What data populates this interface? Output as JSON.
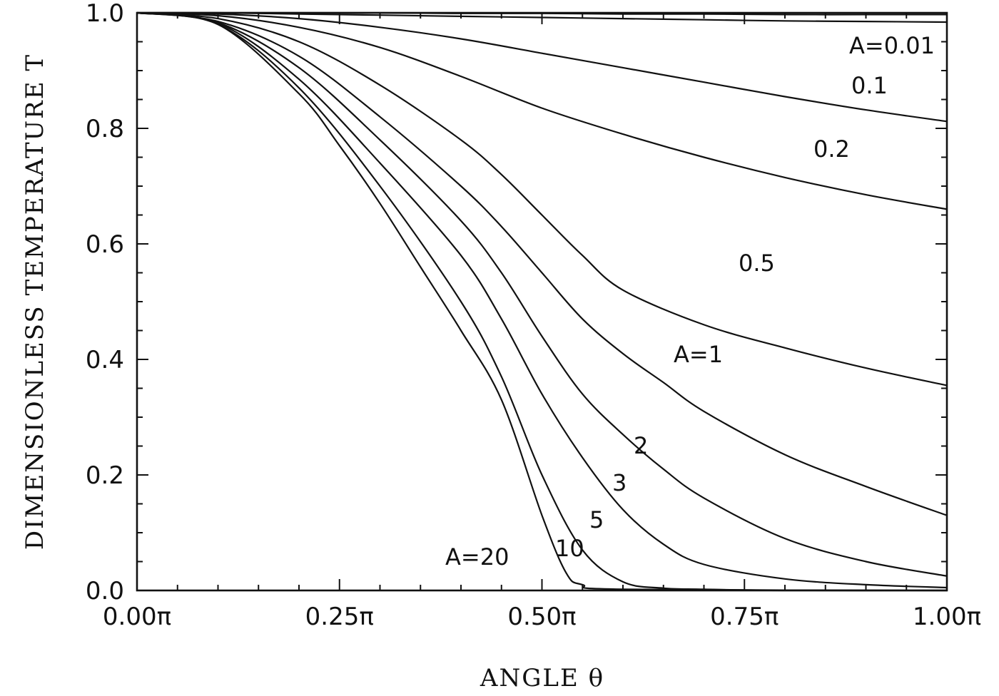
{
  "chart_data": {
    "type": "line",
    "title": "",
    "xlabel": "ANGLE θ",
    "ylabel": "DIMENSIONLESS TEMPERATURE T",
    "xlim": [
      0,
      1
    ],
    "ylim": [
      0,
      1
    ],
    "x_unit": "π",
    "x_ticks": [
      0,
      0.25,
      0.5,
      0.75,
      1.0
    ],
    "x_tick_labels": [
      "0.00π",
      "0.25π",
      "0.50π",
      "0.75π",
      "1.00π"
    ],
    "y_ticks": [
      0,
      0.2,
      0.4,
      0.6,
      0.8,
      1.0
    ],
    "y_tick_labels": [
      "0.0",
      "0.2",
      "0.4",
      "0.6",
      "0.8",
      "1.0"
    ],
    "grid": false,
    "legend": "none",
    "series": [
      {
        "name": "A=0.01",
        "label": "A=0.01",
        "x": [
          0,
          0.1,
          0.2,
          0.3,
          0.4,
          0.5,
          0.6,
          0.7,
          0.8,
          0.9,
          1.0
        ],
        "y": [
          1.0,
          1.0,
          1.0,
          1.0,
          0.999,
          0.999,
          0.998,
          0.998,
          0.997,
          0.997,
          0.997
        ]
      },
      {
        "name": "0.1",
        "label": "0.1",
        "x": [
          0,
          0.1,
          0.2,
          0.3,
          0.4,
          0.5,
          0.6,
          0.7,
          0.8,
          0.9,
          1.0
        ],
        "y": [
          1.0,
          1.0,
          0.998,
          0.996,
          0.994,
          0.992,
          0.99,
          0.988,
          0.986,
          0.985,
          0.984
        ]
      },
      {
        "name": "0.2",
        "label": "0.2",
        "x": [
          0,
          0.1,
          0.2,
          0.3,
          0.4,
          0.5,
          0.6,
          0.7,
          0.8,
          0.9,
          1.0
        ],
        "y": [
          1.0,
          0.998,
          0.99,
          0.975,
          0.955,
          0.93,
          0.905,
          0.88,
          0.855,
          0.832,
          0.812
        ]
      },
      {
        "name": "0.5",
        "label": "0.5",
        "x": [
          0,
          0.1,
          0.2,
          0.3,
          0.4,
          0.5,
          0.6,
          0.7,
          0.8,
          0.9,
          1.0
        ],
        "y": [
          1.0,
          0.995,
          0.975,
          0.94,
          0.89,
          0.835,
          0.79,
          0.75,
          0.715,
          0.685,
          0.66
        ]
      },
      {
        "name": "A=1",
        "label": "A=1",
        "x": [
          0,
          0.1,
          0.2,
          0.3,
          0.4,
          0.45,
          0.5,
          0.55,
          0.6,
          0.7,
          0.8,
          0.9,
          1.0
        ],
        "y": [
          1.0,
          0.99,
          0.95,
          0.875,
          0.78,
          0.72,
          0.65,
          0.58,
          0.52,
          0.46,
          0.42,
          0.385,
          0.355
        ]
      },
      {
        "name": "2",
        "label": "2",
        "x": [
          0,
          0.1,
          0.2,
          0.3,
          0.4,
          0.45,
          0.5,
          0.55,
          0.6,
          0.65,
          0.7,
          0.8,
          0.9,
          1.0
        ],
        "y": [
          1.0,
          0.985,
          0.925,
          0.82,
          0.7,
          0.63,
          0.55,
          0.47,
          0.41,
          0.36,
          0.31,
          0.235,
          0.18,
          0.13
        ]
      },
      {
        "name": "3",
        "label": "3",
        "x": [
          0,
          0.1,
          0.2,
          0.3,
          0.4,
          0.45,
          0.5,
          0.55,
          0.6,
          0.65,
          0.7,
          0.8,
          0.9,
          1.0
        ],
        "y": [
          1.0,
          0.983,
          0.905,
          0.78,
          0.64,
          0.55,
          0.44,
          0.34,
          0.27,
          0.21,
          0.16,
          0.09,
          0.05,
          0.025
        ]
      },
      {
        "name": "5",
        "label": "5",
        "x": [
          0,
          0.1,
          0.2,
          0.3,
          0.4,
          0.45,
          0.5,
          0.55,
          0.6,
          0.65,
          0.7,
          0.8,
          0.9,
          1.0
        ],
        "y": [
          1.0,
          0.982,
          0.885,
          0.74,
          0.58,
          0.47,
          0.34,
          0.23,
          0.14,
          0.08,
          0.045,
          0.02,
          0.01,
          0.005
        ]
      },
      {
        "name": "10",
        "label": "10",
        "x": [
          0,
          0.1,
          0.2,
          0.3,
          0.4,
          0.45,
          0.5,
          0.55,
          0.6,
          0.65,
          0.7,
          0.8,
          1.0
        ],
        "y": [
          1.0,
          0.98,
          0.87,
          0.7,
          0.5,
          0.37,
          0.2,
          0.07,
          0.015,
          0.004,
          0.002,
          0.0,
          0.0
        ]
      },
      {
        "name": "A=20",
        "label": "A=20",
        "x": [
          0,
          0.1,
          0.2,
          0.25,
          0.3,
          0.35,
          0.4,
          0.45,
          0.5,
          0.53,
          0.55,
          0.6,
          1.0
        ],
        "y": [
          1.0,
          0.98,
          0.86,
          0.77,
          0.67,
          0.56,
          0.45,
          0.33,
          0.13,
          0.03,
          0.01,
          0.002,
          0.0
        ]
      }
    ],
    "annotations": [
      {
        "text": "A=0.01",
        "series": "A=0.01"
      },
      {
        "text": "0.1",
        "series": "0.1"
      },
      {
        "text": "0.2",
        "series": "0.2"
      },
      {
        "text": "0.5",
        "series": "0.5"
      },
      {
        "text": "A=1",
        "series": "A=1"
      },
      {
        "text": "2",
        "series": "2"
      },
      {
        "text": "3",
        "series": "3"
      },
      {
        "text": "5",
        "series": "5"
      },
      {
        "text": "10",
        "series": "10"
      },
      {
        "text": "A=20",
        "series": "A=20"
      }
    ]
  }
}
